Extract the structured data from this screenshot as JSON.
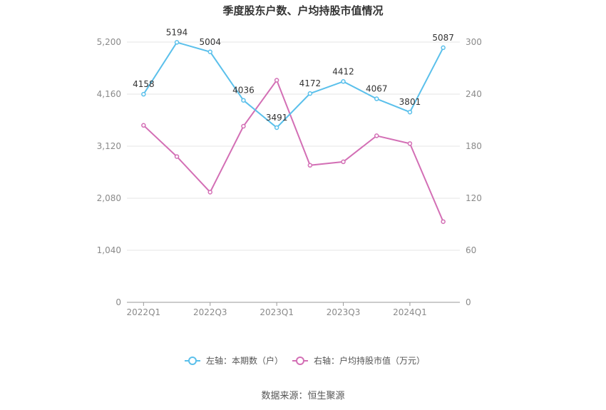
{
  "chart_data": {
    "type": "line",
    "title": "季度股东户数、户均持股市值情况",
    "categories": [
      "2022Q1",
      "2022Q2",
      "2022Q3",
      "2022Q4",
      "2023Q1",
      "2023Q2",
      "2023Q3",
      "2023Q4",
      "2024Q1",
      "2024Q2"
    ],
    "x_tick_labels": [
      "2022Q1",
      "2022Q3",
      "2023Q1",
      "2023Q3",
      "2024Q1"
    ],
    "y_left": {
      "min": 0,
      "max": 5200,
      "ticks": [
        "0",
        "1,040",
        "2,080",
        "3,120",
        "4,160",
        "5,200"
      ],
      "tick_values": [
        0,
        1040,
        2080,
        3120,
        4160,
        5200
      ]
    },
    "y_right": {
      "min": 0,
      "max": 300,
      "ticks": [
        "0",
        "60",
        "120",
        "180",
        "240",
        "300"
      ],
      "tick_values": [
        0,
        60,
        120,
        180,
        240,
        300
      ]
    },
    "series": [
      {
        "name": "左轴：本期数（户）",
        "axis": "left",
        "color": "#5bc0eb",
        "values": [
          4158,
          5194,
          5004,
          4036,
          3491,
          4172,
          4412,
          4067,
          3801,
          5087
        ],
        "labels": [
          "4158",
          "5194",
          "5004",
          "4036",
          "3491",
          "4172",
          "4412",
          "4067",
          "3801",
          "5087"
        ]
      },
      {
        "name": "右轴：户均持股市值（万元）",
        "axis": "right",
        "color": "#d36fb5",
        "values": [
          204,
          168,
          127,
          203,
          256,
          158,
          162,
          192,
          183,
          93
        ]
      }
    ],
    "grid": true,
    "legend_position": "bottom-center"
  },
  "source": "数据来源：恒生聚源"
}
